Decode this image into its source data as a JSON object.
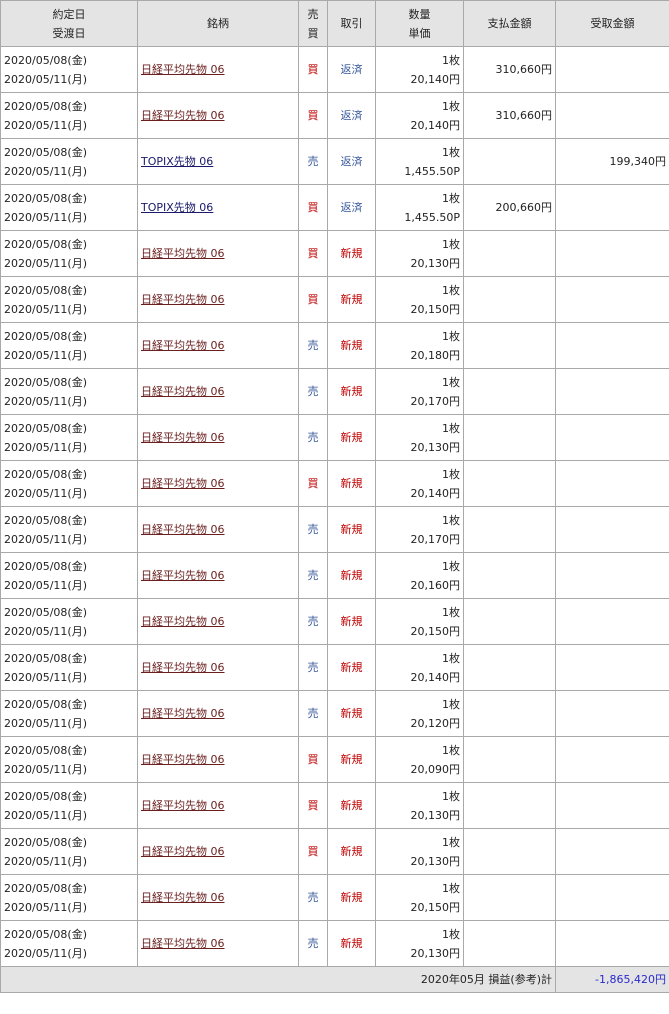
{
  "header": {
    "date1": "約定日",
    "date2": "受渡日",
    "name": "銘柄",
    "side1": "売",
    "side2": "買",
    "type": "取引",
    "qty": "数量",
    "price": "単価",
    "pay": "支払金額",
    "recv": "受取金額"
  },
  "colors": {
    "buy": "#c00000",
    "sell": "#3a5a9a",
    "new": "#c00000",
    "close": "#3a5a9a",
    "total": "#2a2acc"
  },
  "rows": [
    {
      "d1": "2020/05/08(金)",
      "d2": "2020/05/11(月)",
      "name": "日経平均先物 06",
      "side": "買",
      "type": "返済",
      "qty": "1枚",
      "price": "20,140円",
      "pay": "310,660円",
      "recv": ""
    },
    {
      "d1": "2020/05/08(金)",
      "d2": "2020/05/11(月)",
      "name": "日経平均先物 06",
      "side": "買",
      "type": "返済",
      "qty": "1枚",
      "price": "20,140円",
      "pay": "310,660円",
      "recv": ""
    },
    {
      "d1": "2020/05/08(金)",
      "d2": "2020/05/11(月)",
      "name": "TOPIX先物 06",
      "side": "売",
      "type": "返済",
      "qty": "1枚",
      "price": "1,455.50P",
      "pay": "",
      "recv": "199,340円"
    },
    {
      "d1": "2020/05/08(金)",
      "d2": "2020/05/11(月)",
      "name": "TOPIX先物 06",
      "side": "買",
      "type": "返済",
      "qty": "1枚",
      "price": "1,455.50P",
      "pay": "200,660円",
      "recv": ""
    },
    {
      "d1": "2020/05/08(金)",
      "d2": "2020/05/11(月)",
      "name": "日経平均先物 06",
      "side": "買",
      "type": "新規",
      "qty": "1枚",
      "price": "20,130円",
      "pay": "",
      "recv": ""
    },
    {
      "d1": "2020/05/08(金)",
      "d2": "2020/05/11(月)",
      "name": "日経平均先物 06",
      "side": "買",
      "type": "新規",
      "qty": "1枚",
      "price": "20,150円",
      "pay": "",
      "recv": ""
    },
    {
      "d1": "2020/05/08(金)",
      "d2": "2020/05/11(月)",
      "name": "日経平均先物 06",
      "side": "売",
      "type": "新規",
      "qty": "1枚",
      "price": "20,180円",
      "pay": "",
      "recv": ""
    },
    {
      "d1": "2020/05/08(金)",
      "d2": "2020/05/11(月)",
      "name": "日経平均先物 06",
      "side": "売",
      "type": "新規",
      "qty": "1枚",
      "price": "20,170円",
      "pay": "",
      "recv": ""
    },
    {
      "d1": "2020/05/08(金)",
      "d2": "2020/05/11(月)",
      "name": "日経平均先物 06",
      "side": "売",
      "type": "新規",
      "qty": "1枚",
      "price": "20,130円",
      "pay": "",
      "recv": ""
    },
    {
      "d1": "2020/05/08(金)",
      "d2": "2020/05/11(月)",
      "name": "日経平均先物 06",
      "side": "買",
      "type": "新規",
      "qty": "1枚",
      "price": "20,140円",
      "pay": "",
      "recv": ""
    },
    {
      "d1": "2020/05/08(金)",
      "d2": "2020/05/11(月)",
      "name": "日経平均先物 06",
      "side": "売",
      "type": "新規",
      "qty": "1枚",
      "price": "20,170円",
      "pay": "",
      "recv": ""
    },
    {
      "d1": "2020/05/08(金)",
      "d2": "2020/05/11(月)",
      "name": "日経平均先物 06",
      "side": "売",
      "type": "新規",
      "qty": "1枚",
      "price": "20,160円",
      "pay": "",
      "recv": ""
    },
    {
      "d1": "2020/05/08(金)",
      "d2": "2020/05/11(月)",
      "name": "日経平均先物 06",
      "side": "売",
      "type": "新規",
      "qty": "1枚",
      "price": "20,150円",
      "pay": "",
      "recv": ""
    },
    {
      "d1": "2020/05/08(金)",
      "d2": "2020/05/11(月)",
      "name": "日経平均先物 06",
      "side": "売",
      "type": "新規",
      "qty": "1枚",
      "price": "20,140円",
      "pay": "",
      "recv": ""
    },
    {
      "d1": "2020/05/08(金)",
      "d2": "2020/05/11(月)",
      "name": "日経平均先物 06",
      "side": "売",
      "type": "新規",
      "qty": "1枚",
      "price": "20,120円",
      "pay": "",
      "recv": ""
    },
    {
      "d1": "2020/05/08(金)",
      "d2": "2020/05/11(月)",
      "name": "日経平均先物 06",
      "side": "買",
      "type": "新規",
      "qty": "1枚",
      "price": "20,090円",
      "pay": "",
      "recv": ""
    },
    {
      "d1": "2020/05/08(金)",
      "d2": "2020/05/11(月)",
      "name": "日経平均先物 06",
      "side": "買",
      "type": "新規",
      "qty": "1枚",
      "price": "20,130円",
      "pay": "",
      "recv": ""
    },
    {
      "d1": "2020/05/08(金)",
      "d2": "2020/05/11(月)",
      "name": "日経平均先物 06",
      "side": "買",
      "type": "新規",
      "qty": "1枚",
      "price": "20,130円",
      "pay": "",
      "recv": ""
    },
    {
      "d1": "2020/05/08(金)",
      "d2": "2020/05/11(月)",
      "name": "日経平均先物 06",
      "side": "売",
      "type": "新規",
      "qty": "1枚",
      "price": "20,150円",
      "pay": "",
      "recv": ""
    },
    {
      "d1": "2020/05/08(金)",
      "d2": "2020/05/11(月)",
      "name": "日経平均先物 06",
      "side": "売",
      "type": "新規",
      "qty": "1枚",
      "price": "20,130円",
      "pay": "",
      "recv": ""
    }
  ],
  "footer": {
    "label": "2020年05月 損益(参考)計",
    "total": "-1,865,420円"
  }
}
